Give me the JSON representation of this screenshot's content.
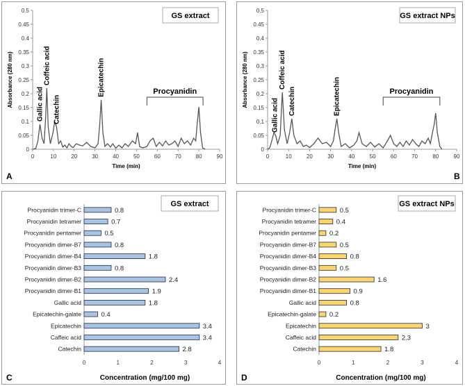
{
  "chart_data": [
    {
      "panel_letter": "A",
      "type": "line",
      "title": "GS extract",
      "xlabel": "Time (min)",
      "ylabel": "Absorbance (280 nm)",
      "xlim": [
        0,
        90
      ],
      "ylim": [
        0,
        0.5
      ],
      "xticks": [
        0,
        10,
        20,
        30,
        40,
        50,
        60,
        70,
        80,
        90
      ],
      "yticks": [
        "0",
        "0.05",
        "0.1",
        "0.15",
        "0.2",
        "0.25",
        "0.3",
        "0.35",
        "0.4",
        "0.45",
        "0.5"
      ],
      "annotations": [
        {
          "text": "Gallic acid",
          "x": 3.5
        },
        {
          "text": "Coffeic acid",
          "x": 6.8
        },
        {
          "text": "Catechin",
          "x": 11.5
        },
        {
          "text": "Epicatechin",
          "x": 33
        },
        {
          "text": "Procyanidin",
          "x": 68,
          "bracket": [
            55,
            82
          ]
        }
      ],
      "x": [
        0,
        1.5,
        2.5,
        3.5,
        4.5,
        5.5,
        6.3,
        6.8,
        7.5,
        8.5,
        9.8,
        10.6,
        11.5,
        12.5,
        13.5,
        14.5,
        15.5,
        16.5,
        17.5,
        18.5,
        19.5,
        21,
        22.5,
        24,
        26,
        28,
        30,
        31.5,
        32.3,
        33,
        33.8,
        34.8,
        36,
        37.5,
        38.5,
        40,
        41.5,
        43,
        44.5,
        46,
        48,
        49.5,
        50.5,
        51.5,
        53,
        55,
        56.5,
        58,
        59.5,
        61,
        62.5,
        64,
        65.5,
        67,
        68.5,
        70,
        71.5,
        73,
        74.5,
        76,
        77.5,
        78.5,
        79.3,
        80,
        80.8,
        81.8,
        83
      ],
      "values": [
        0,
        0.003,
        0.03,
        0.09,
        0.04,
        0.02,
        0.12,
        0.22,
        0.08,
        0.02,
        0.06,
        0.1,
        0.08,
        0.02,
        0.03,
        0.008,
        0.015,
        0.005,
        0.02,
        0.01,
        0.006,
        0.02,
        0.015,
        0.012,
        0.025,
        0.01,
        0.005,
        0.02,
        0.09,
        0.178,
        0.06,
        0.01,
        0.02,
        0.008,
        0.02,
        0.004,
        0.015,
        0.005,
        0.02,
        0.01,
        0.03,
        0.02,
        0.06,
        0.01,
        0.005,
        0.01,
        0.03,
        0.04,
        0.01,
        0.025,
        0.012,
        0.03,
        0.015,
        0.02,
        0.03,
        0.01,
        0.04,
        0.02,
        0.03,
        0.015,
        0.04,
        0.03,
        0.1,
        0.152,
        0.06,
        0.005,
        0
      ]
    },
    {
      "panel_letter": "B",
      "type": "line",
      "title": "GS extract NPs",
      "xlabel": "Time (min)",
      "ylabel": "Absorbance (280 nm)",
      "xlim": [
        0,
        90
      ],
      "ylim": [
        0,
        0.5
      ],
      "xticks": [
        0,
        10,
        20,
        30,
        40,
        50,
        60,
        70,
        80,
        90
      ],
      "yticks": [
        "0",
        "0.05",
        "0.1",
        "0.15",
        "0.2",
        "0.25",
        "0.3",
        "0.35",
        "0.4",
        "0.45",
        "0.5"
      ],
      "annotations": [
        {
          "text": "Gallic acid",
          "x": 3.5
        },
        {
          "text": "Coffeic acid",
          "x": 7
        },
        {
          "text": "Catechin",
          "x": 11.5
        },
        {
          "text": "Epicatechin",
          "x": 33
        },
        {
          "text": "Procyanidin",
          "x": 68,
          "bracket": [
            55,
            82
          ]
        }
      ],
      "x": [
        0,
        1,
        2,
        3,
        3.8,
        4.8,
        6,
        7,
        8,
        9.3,
        10.5,
        11.5,
        12.5,
        14,
        15.5,
        17,
        18.5,
        20,
        22,
        24,
        26,
        28,
        30,
        31.3,
        32.3,
        33,
        33.8,
        35,
        37,
        39,
        41,
        42.5,
        43.5,
        45,
        47,
        49,
        51,
        53,
        55,
        57,
        58.5,
        60,
        61.5,
        63,
        64.5,
        66,
        67.5,
        69,
        70.5,
        72,
        73.5,
        75,
        76.5,
        77.5,
        78.5,
        79.3,
        80,
        80.8,
        82,
        83
      ],
      "values": [
        0,
        0.005,
        0.03,
        0.06,
        0.05,
        0.02,
        0.05,
        0.205,
        0.07,
        0.02,
        0.06,
        0.11,
        0.05,
        0.02,
        0.03,
        0.01,
        0.015,
        0.006,
        0.02,
        0.04,
        0.02,
        0.025,
        0.01,
        0.03,
        0.08,
        0.11,
        0.06,
        0.01,
        0.02,
        0.005,
        0.015,
        0.03,
        0.06,
        0.02,
        0.01,
        0.025,
        0.008,
        0.02,
        0.005,
        0.03,
        0.05,
        0.02,
        0.01,
        0.025,
        0.01,
        0.03,
        0.015,
        0.035,
        0.02,
        0.01,
        0.03,
        0.02,
        0.04,
        0.02,
        0.06,
        0.09,
        0.13,
        0.06,
        0.01,
        0
      ]
    },
    {
      "panel_letter": "C",
      "type": "bar",
      "orientation": "horizontal",
      "title": "GS extract",
      "xlabel": "Concentration  (mg/100 mg)",
      "xlim": [
        0,
        4
      ],
      "xticks": [
        0,
        1,
        2,
        3,
        4
      ],
      "bar_color": "#a8c4e2",
      "categories": [
        "Procyanidin trimer-C",
        "Procyanidin tetramer",
        "Procyanidin pentamer",
        "Procyanidin dimer-B7",
        "Procyanidin dimer-B4",
        "Procyanidin dimer-B3",
        "Procyanidin dimer-B2",
        "Procyanidin dimer-B1",
        "Gallic acid",
        "Epicatechin-galate",
        "Epicatechin",
        "Caffeic acid",
        "Catechin"
      ],
      "values": [
        0.8,
        0.7,
        0.5,
        0.8,
        1.8,
        0.8,
        2.4,
        1.9,
        1.8,
        0.4,
        3.4,
        3.4,
        2.8
      ],
      "labels": [
        "0.8",
        "0.7",
        "0.5",
        "0.8",
        "1.8",
        "0.8",
        "2.4",
        "1.9",
        "1.8",
        "0.4",
        "3.4",
        "3.4",
        "2.8"
      ]
    },
    {
      "panel_letter": "D",
      "type": "bar",
      "orientation": "horizontal",
      "title": "GS extract NPs",
      "xlabel": "Concentration (mg/100 mg)",
      "xlim": [
        0,
        4
      ],
      "xticks": [
        0,
        1,
        2,
        3,
        4
      ],
      "bar_color": "#fcd46a",
      "categories": [
        "Procyanidin trimer-C",
        "Procyanidin tetramer",
        "Procyanidin pentamer",
        "Procyanidin dimer-B7",
        "Procyanidin dimer-B4",
        "Procyanidin dimer-B3",
        "Procyanidin dimer-B2",
        "Procyanidin dimer-B1",
        "Gallic acid",
        "Epicatechin-galate",
        "Epicatechin",
        "Caffeic acid",
        "Catechin"
      ],
      "values": [
        0.5,
        0.4,
        0.2,
        0.5,
        0.8,
        0.5,
        1.6,
        0.9,
        0.8,
        0.2,
        3,
        2.3,
        1.8
      ],
      "labels": [
        "0.5",
        "0.4",
        "0.2",
        "0.5",
        "0.8",
        "0.5",
        "1.6",
        "0.9",
        "0.8",
        "0.2",
        "3",
        "2.3",
        "1.8"
      ]
    }
  ]
}
